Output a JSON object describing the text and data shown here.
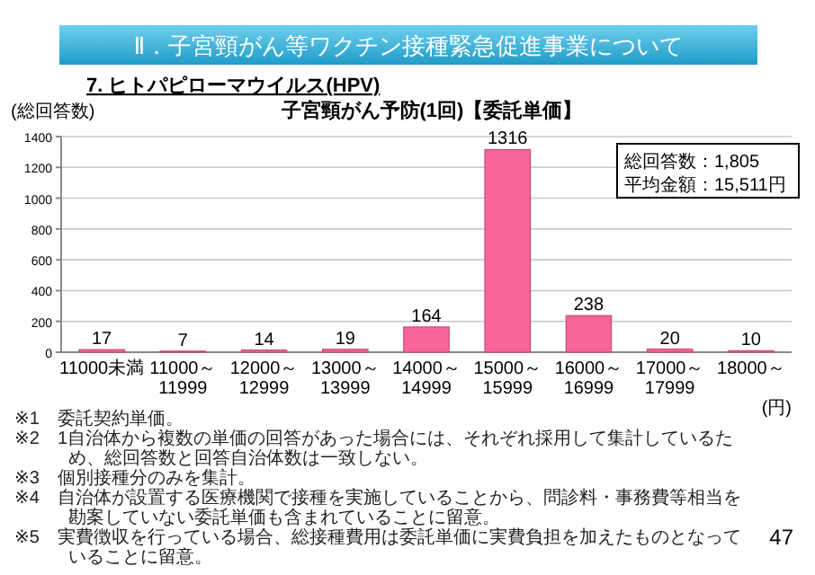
{
  "chart_data": {
    "type": "bar",
    "title": "子宮頸がん予防(1回)【委託単価】",
    "subtitle": "7. ヒトパピローマウイルス(HPV)",
    "ylabel": "(総回答数)",
    "categories": [
      "11000未満",
      "11000～11999",
      "12000～12999",
      "13000～13999",
      "14000～14999",
      "15000～15999",
      "16000～16999",
      "17000～17999",
      "18000～"
    ],
    "values": [
      17,
      7,
      14,
      19,
      164,
      1316,
      238,
      20,
      10
    ],
    "color": "#f7659a",
    "ylim": [
      0,
      1400
    ],
    "yticks": [
      0,
      200,
      400,
      600,
      800,
      1000,
      1200,
      1400
    ],
    "grid": "y",
    "data_labels": true,
    "annotations": [
      "Ⅱ．子宮頸がん等ワクチン接種緊急促進事業について",
      "総回答数：1,805",
      "平均金額：15,511円",
      "(円)",
      "※1　委託契約単価。",
      "※2　1自治体から複数の単価の回答があった場合には、それぞれ採用して集計しているため、総回答数と回答自治体数は一致しない。",
      "※3　個別接種分のみを集計。",
      "※4　自治体が設置する医療機関で接種を実施していることから、問診料・事務費等相当を勘案していない委託単価も含まれていることに留意。",
      "※5　実費徴収を行っている場合、総接種費用は委託単価に実費負担を加えたものとなっていることに留意。",
      "47"
    ]
  }
}
